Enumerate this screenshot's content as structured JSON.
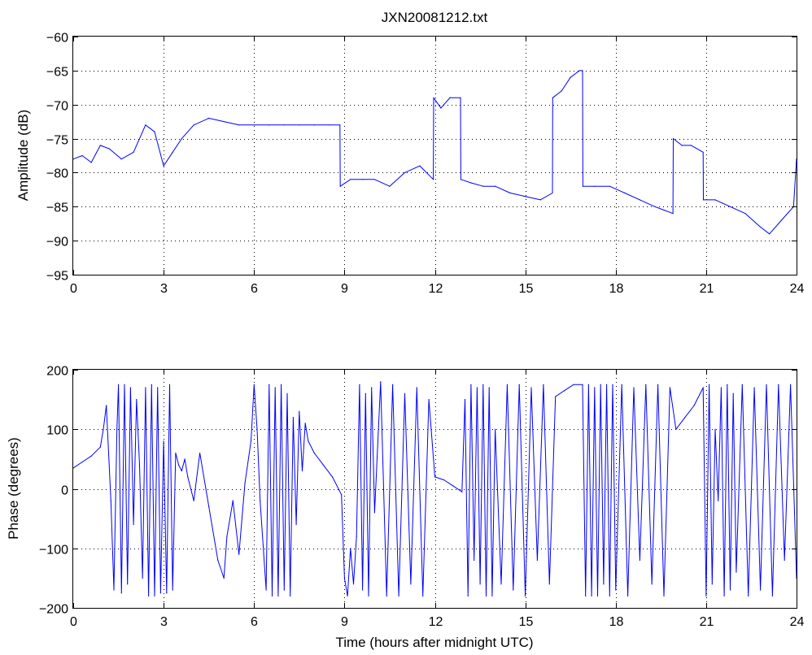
{
  "figure": {
    "background": "#ffffff",
    "series_color": "#0000ff"
  },
  "chart_data": [
    {
      "type": "line",
      "title": "JXN20081212.txt",
      "xlabel": "",
      "ylabel": "Amplitude (dB)",
      "xlim": [
        0,
        24
      ],
      "ylim": [
        -95,
        -60
      ],
      "xticks": [
        0,
        3,
        6,
        9,
        12,
        15,
        18,
        21,
        24
      ],
      "yticks": [
        -95,
        -90,
        -85,
        -80,
        -75,
        -70,
        -65,
        -60
      ],
      "grid": true,
      "series": [
        {
          "x": [
            0,
            0.3,
            0.6,
            0.9,
            1.2,
            1.6,
            2.0,
            2.4,
            2.7,
            3.0,
            3.3,
            3.6,
            4.0,
            4.5,
            5.0,
            5.5,
            6.0,
            6.5,
            7.0,
            7.5,
            8.0,
            8.5,
            8.85,
            8.86,
            9.2,
            9.6,
            10.0,
            10.5,
            11.0,
            11.5,
            11.95,
            11.96,
            12.2,
            12.5,
            12.85,
            12.86,
            13.2,
            13.6,
            14.0,
            14.5,
            15.0,
            15.5,
            15.9,
            15.91,
            16.2,
            16.5,
            16.8,
            16.9,
            16.91,
            17.3,
            17.8,
            18.3,
            18.8,
            19.3,
            19.6,
            19.9,
            19.91,
            20.2,
            20.5,
            20.9,
            20.91,
            21.3,
            21.8,
            22.3,
            22.8,
            23.1,
            23.5,
            23.9,
            24.0
          ],
          "y": [
            -78,
            -77.5,
            -78.5,
            -76,
            -76.5,
            -78,
            -77,
            -73,
            -74,
            -79,
            -77,
            -75,
            -73,
            -72,
            -72.5,
            -73,
            -73,
            -73,
            -73,
            -73,
            -73,
            -73,
            -73,
            -82,
            -81,
            -81,
            -81,
            -82,
            -80,
            -79,
            -81,
            -69,
            -70.5,
            -69,
            -69,
            -81,
            -81.5,
            -82,
            -82,
            -83,
            -83.5,
            -84,
            -83,
            -69,
            -68,
            -66,
            -65,
            -65,
            -82,
            -82,
            -82,
            -83,
            -84,
            -85,
            -85.5,
            -86,
            -75,
            -76,
            -76,
            -77,
            -84,
            -84,
            -85,
            -86,
            -88,
            -89,
            -87,
            -85,
            -78
          ]
        }
      ]
    },
    {
      "type": "line",
      "title": "",
      "xlabel": "Time (hours after midnight UTC)",
      "ylabel": "Phase (degrees)",
      "xlim": [
        0,
        24
      ],
      "ylim": [
        -200,
        200
      ],
      "xticks": [
        0,
        3,
        6,
        9,
        12,
        15,
        18,
        21,
        24
      ],
      "yticks": [
        -200,
        -100,
        0,
        100,
        200
      ],
      "grid": true,
      "series": [
        {
          "x": [
            0,
            0.3,
            0.6,
            0.9,
            1.0,
            1.1,
            1.25,
            1.35,
            1.45,
            1.5,
            1.6,
            1.7,
            1.8,
            1.9,
            2.0,
            2.1,
            2.2,
            2.3,
            2.4,
            2.5,
            2.6,
            2.7,
            2.8,
            2.9,
            3.0,
            3.1,
            3.2,
            3.3,
            3.4,
            3.5,
            3.6,
            3.7,
            3.8,
            3.9,
            4.0,
            4.2,
            4.5,
            4.8,
            5.0,
            5.1,
            5.3,
            5.5,
            5.7,
            5.9,
            6.0,
            6.1,
            6.2,
            6.4,
            6.5,
            6.6,
            6.7,
            6.8,
            6.9,
            7.0,
            7.1,
            7.2,
            7.3,
            7.4,
            7.5,
            7.6,
            7.7,
            7.8,
            8.0,
            8.3,
            8.6,
            8.9,
            9.0,
            9.1,
            9.2,
            9.3,
            9.4,
            9.5,
            9.6,
            9.7,
            9.8,
            9.9,
            10.0,
            10.2,
            10.4,
            10.6,
            10.8,
            11.0,
            11.2,
            11.4,
            11.6,
            11.8,
            12.0,
            12.3,
            12.6,
            12.9,
            13.0,
            13.1,
            13.2,
            13.3,
            13.4,
            13.5,
            13.6,
            13.7,
            13.8,
            13.9,
            14.0,
            14.2,
            14.4,
            14.6,
            14.8,
            15.0,
            15.2,
            15.4,
            15.6,
            15.8,
            16.0,
            16.3,
            16.6,
            16.9,
            17.0,
            17.1,
            17.2,
            17.3,
            17.4,
            17.5,
            17.6,
            17.7,
            17.8,
            17.9,
            18.0,
            18.2,
            18.4,
            18.6,
            18.8,
            19.0,
            19.2,
            19.4,
            19.6,
            19.8,
            20.0,
            20.3,
            20.6,
            20.9,
            21.0,
            21.1,
            21.2,
            21.3,
            21.4,
            21.5,
            21.6,
            21.7,
            21.8,
            21.9,
            22.0,
            22.2,
            22.4,
            22.6,
            22.8,
            23.0,
            23.2,
            23.4,
            23.6,
            23.8,
            24.0
          ],
          "y": [
            35,
            45,
            55,
            70,
            100,
            140,
            -20,
            -170,
            100,
            175,
            -175,
            175,
            -160,
            170,
            -60,
            150,
            40,
            -150,
            170,
            -180,
            175,
            -180,
            170,
            -175,
            80,
            -175,
            175,
            -170,
            60,
            40,
            30,
            50,
            20,
            0,
            -20,
            60,
            -30,
            -120,
            -150,
            -80,
            -20,
            -110,
            10,
            80,
            175,
            100,
            -20,
            -170,
            175,
            -180,
            170,
            -180,
            175,
            -170,
            160,
            -180,
            120,
            -60,
            130,
            30,
            110,
            80,
            60,
            40,
            20,
            -10,
            -150,
            -180,
            -100,
            -160,
            -80,
            175,
            -170,
            160,
            -180,
            170,
            -40,
            180,
            -180,
            175,
            -180,
            160,
            -160,
            170,
            -180,
            150,
            20,
            15,
            5,
            -5,
            150,
            -180,
            175,
            -120,
            170,
            -160,
            175,
            -180,
            170,
            -180,
            100,
            -160,
            175,
            -170,
            175,
            -180,
            170,
            -120,
            175,
            -160,
            155,
            165,
            175,
            175,
            -180,
            175,
            -180,
            170,
            -180,
            175,
            -160,
            175,
            -180,
            175,
            -170,
            175,
            -180,
            170,
            -120,
            175,
            -160,
            175,
            -180,
            170,
            100,
            120,
            140,
            170,
            -180,
            175,
            -160,
            100,
            -20,
            170,
            -180,
            175,
            -170,
            160,
            -140,
            175,
            -180,
            170,
            -170,
            175,
            -180,
            175,
            -120,
            175,
            -150
          ]
        }
      ]
    }
  ]
}
